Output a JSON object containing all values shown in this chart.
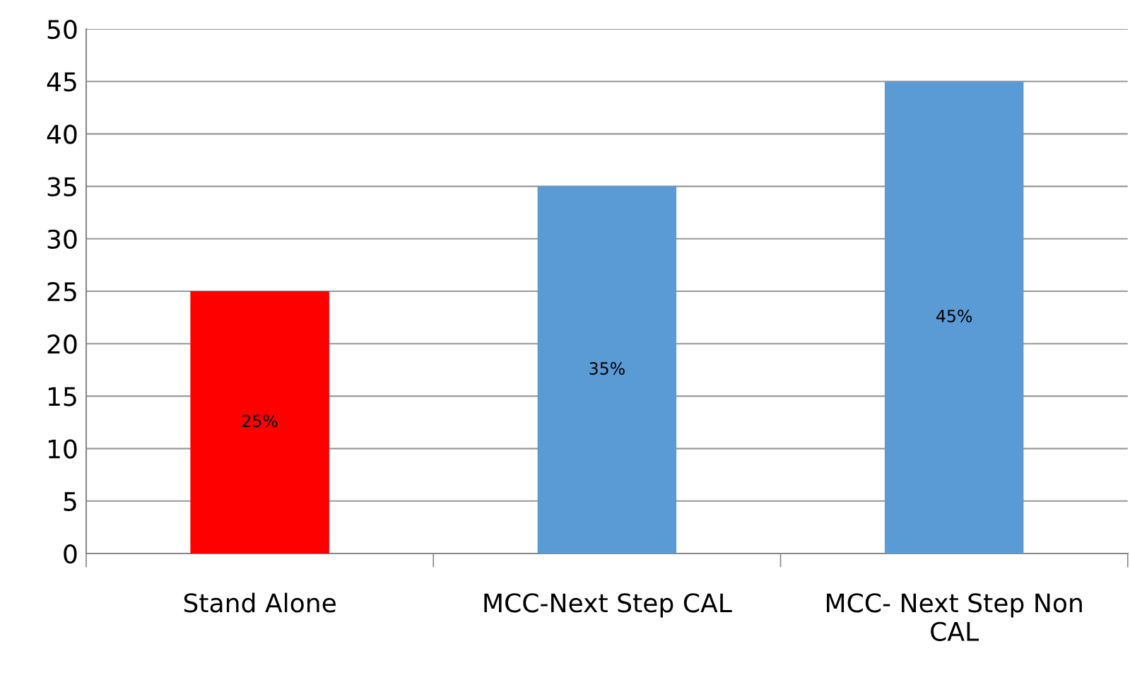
{
  "chart_data": {
    "type": "bar",
    "categories": [
      "Stand Alone",
      "MCC-Next Step CAL",
      "MCC- Next Step Non\nCAL"
    ],
    "values": [
      25,
      35,
      45
    ],
    "colors": [
      "#ff0000",
      "#5b9bd5",
      "#5b9bd5"
    ],
    "value_labels": [
      "25%",
      "35%",
      "45%"
    ],
    "ylim": [
      0,
      50
    ],
    "yticks": [
      0,
      5,
      10,
      15,
      20,
      25,
      30,
      35,
      40,
      45,
      50
    ],
    "grid": "y",
    "legend": false
  }
}
